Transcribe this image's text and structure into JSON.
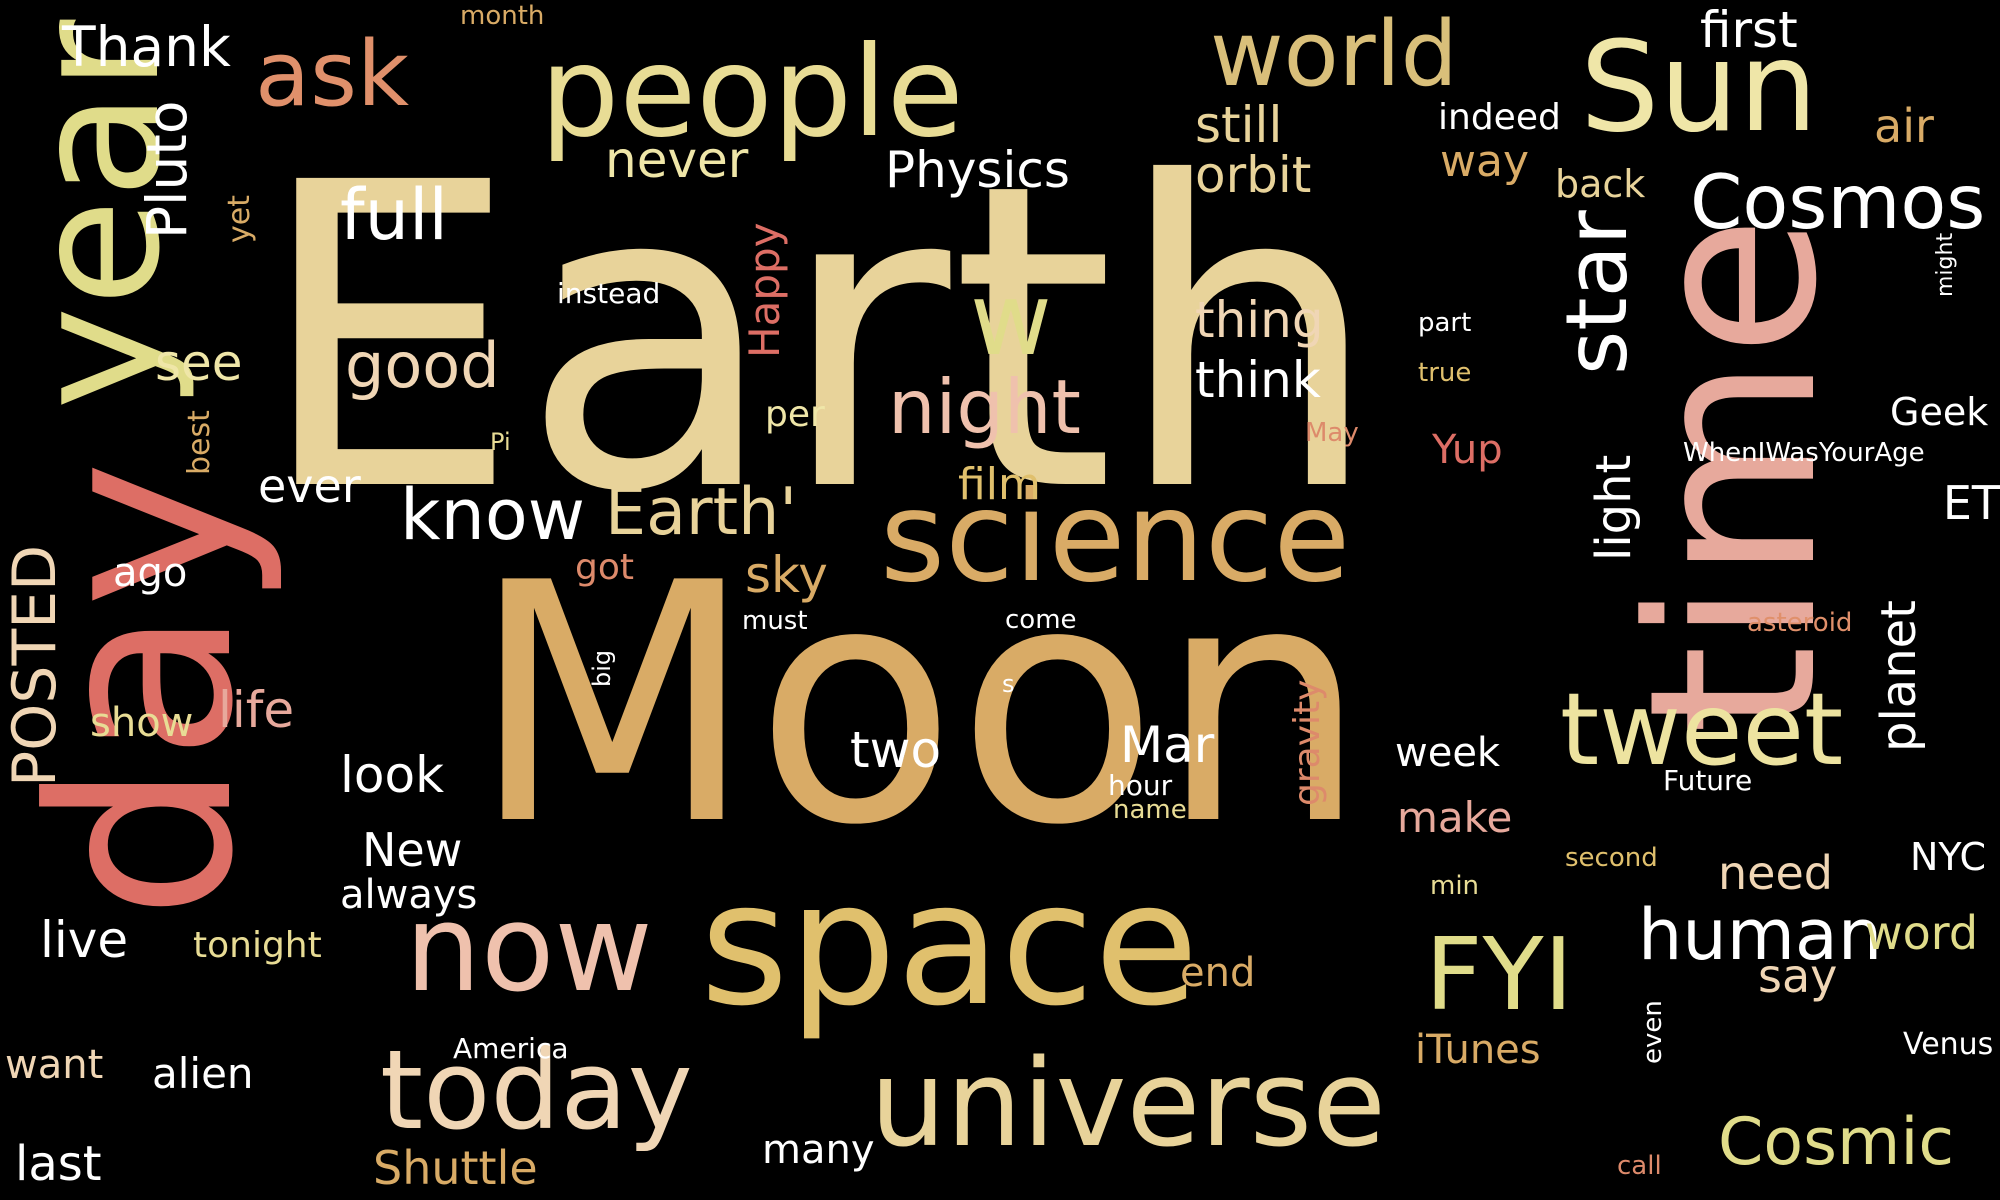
{
  "palette": {
    "bg": "#000000",
    "gold": "#d9ab66",
    "cream": "#e8d39a",
    "yellow": "#e0dc8a",
    "salmon": "#dd6e65",
    "pink": "#e7a99c",
    "peach": "#f0c6a8",
    "white": "#ffffff"
  },
  "words": [
    {
      "text": "Earth",
      "color": "#e8d39a"
    },
    {
      "text": "Moon",
      "color": "#d9ab66"
    },
    {
      "text": "time",
      "color": "#e7a99c"
    },
    {
      "text": "day",
      "color": "#dd6e65"
    },
    {
      "text": "year",
      "color": "#e0dc8a"
    },
    {
      "text": "space",
      "color": "#e0c06d"
    },
    {
      "text": "people",
      "color": "#e8dc95"
    },
    {
      "text": "Sun",
      "color": "#efe6a8"
    },
    {
      "text": "science",
      "color": "#d9ab66"
    },
    {
      "text": "universe",
      "color": "#e8d39a"
    },
    {
      "text": "now",
      "color": "#efc1ad"
    },
    {
      "text": "today",
      "color": "#f0d6b5"
    },
    {
      "text": "world",
      "color": "#d9bf7a"
    },
    {
      "text": "ask",
      "color": "#e0906b"
    },
    {
      "text": "w",
      "color": "#e0dc8a"
    },
    {
      "text": "tweet",
      "color": "#ede3a0"
    },
    {
      "text": "FYI",
      "color": "#e0dc8a"
    },
    {
      "text": "star",
      "color": "#ffffff"
    },
    {
      "text": "Cosmos",
      "color": "#ffffff"
    },
    {
      "text": "night",
      "color": "#efc1ad"
    },
    {
      "text": "human",
      "color": "#ffffff"
    },
    {
      "text": "POSTED",
      "color": "#f0d6b5"
    },
    {
      "text": "know",
      "color": "#ffffff"
    },
    {
      "text": "Earth'",
      "color": "#e8d39a"
    },
    {
      "text": "Cosmic",
      "color": "#e0dc8a"
    },
    {
      "text": "full",
      "color": "#ffffff"
    },
    {
      "text": "good",
      "color": "#f0d6b5"
    },
    {
      "text": "Pluto",
      "color": "#ffffff"
    },
    {
      "text": "Thank",
      "color": "#ffffff"
    },
    {
      "text": "Physics",
      "color": "#ffffff"
    },
    {
      "text": "never",
      "color": "#efe6a8"
    },
    {
      "text": "still",
      "color": "#e8d39a"
    },
    {
      "text": "orbit",
      "color": "#e8d39a"
    },
    {
      "text": "thing",
      "color": "#f0d6b5"
    },
    {
      "text": "think",
      "color": "#ffffff"
    },
    {
      "text": "light",
      "color": "#ffffff"
    },
    {
      "text": "first",
      "color": "#ffffff"
    },
    {
      "text": "indeed",
      "color": "#ffffff"
    },
    {
      "text": "way",
      "color": "#d9ab66"
    },
    {
      "text": "back",
      "color": "#e8d39a"
    },
    {
      "text": "air",
      "color": "#d9ab66"
    },
    {
      "text": "Happy",
      "color": "#dd6e65"
    },
    {
      "text": "see",
      "color": "#efe6a8"
    },
    {
      "text": "instead",
      "color": "#ffffff"
    },
    {
      "text": "Mar",
      "color": "#ffffff"
    },
    {
      "text": "two",
      "color": "#ffffff"
    },
    {
      "text": "life",
      "color": "#e7a99c"
    },
    {
      "text": "look",
      "color": "#ffffff"
    },
    {
      "text": "New",
      "color": "#ffffff"
    },
    {
      "text": "live",
      "color": "#ffffff"
    },
    {
      "text": "alien",
      "color": "#ffffff"
    },
    {
      "text": "ever",
      "color": "#ffffff"
    },
    {
      "text": "Shuttle",
      "color": "#d9ab66"
    },
    {
      "text": "film",
      "color": "#e0c06d"
    },
    {
      "text": "sky",
      "color": "#d9ab66"
    },
    {
      "text": "planet",
      "color": "#ffffff"
    },
    {
      "text": "need",
      "color": "#f0d6b5"
    },
    {
      "text": "word",
      "color": "#e0dc8a"
    },
    {
      "text": "say",
      "color": "#f0d6b5"
    },
    {
      "text": "Geek",
      "color": "#ffffff"
    },
    {
      "text": "ET",
      "color": "#ffffff"
    },
    {
      "text": "NYC",
      "color": "#ffffff"
    },
    {
      "text": "Venus",
      "color": "#ffffff"
    },
    {
      "text": "iTunes",
      "color": "#d9ab66"
    },
    {
      "text": "make",
      "color": "#e7a99c"
    },
    {
      "text": "week",
      "color": "#ffffff"
    },
    {
      "text": "gravity",
      "color": "#dd8a6b"
    },
    {
      "text": "end",
      "color": "#d9ab66"
    },
    {
      "text": "many",
      "color": "#ffffff"
    },
    {
      "text": "last",
      "color": "#ffffff"
    },
    {
      "text": "want",
      "color": "#f0d6b5"
    },
    {
      "text": "show",
      "color": "#e8dc95"
    },
    {
      "text": "always",
      "color": "#ffffff"
    },
    {
      "text": "tonight",
      "color": "#e8dc95"
    },
    {
      "text": "ago",
      "color": "#ffffff"
    },
    {
      "text": "per",
      "color": "#efe6a8"
    },
    {
      "text": "got",
      "color": "#dd8a6b"
    },
    {
      "text": "must",
      "color": "#ffffff"
    },
    {
      "text": "come",
      "color": "#ffffff"
    },
    {
      "text": "big",
      "color": "#ffffff"
    },
    {
      "text": "s",
      "color": "#ffffff"
    },
    {
      "text": "hour",
      "color": "#ffffff"
    },
    {
      "text": "name",
      "color": "#e8dc95"
    },
    {
      "text": "America",
      "color": "#ffffff"
    },
    {
      "text": "Future",
      "color": "#ffffff"
    },
    {
      "text": "second",
      "color": "#e0c06d"
    },
    {
      "text": "min",
      "color": "#e8dc95"
    },
    {
      "text": "even",
      "color": "#ffffff"
    },
    {
      "text": "call",
      "color": "#dd8a6b"
    },
    {
      "text": "asteroid",
      "color": "#e0906b"
    },
    {
      "text": "Yup",
      "color": "#dd6e65"
    },
    {
      "text": "May",
      "color": "#dd8a6b"
    },
    {
      "text": "part",
      "color": "#ffffff"
    },
    {
      "text": "true",
      "color": "#e0c06d"
    },
    {
      "text": "WhenIWasYourAge",
      "color": "#ffffff"
    },
    {
      "text": "might",
      "color": "#ffffff"
    },
    {
      "text": "Pi",
      "color": "#e8dc95"
    },
    {
      "text": "best",
      "color": "#d9ab66"
    },
    {
      "text": "yet",
      "color": "#d9ab66"
    },
    {
      "text": "month",
      "color": "#d9ab66"
    }
  ]
}
